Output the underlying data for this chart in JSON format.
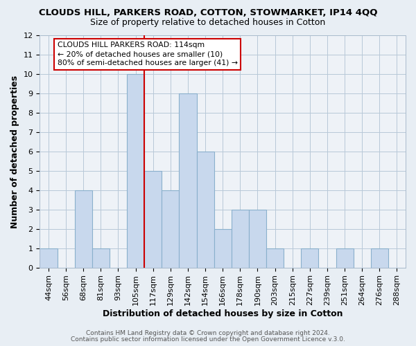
{
  "title": "CLOUDS HILL, PARKERS ROAD, COTTON, STOWMARKET, IP14 4QQ",
  "subtitle": "Size of property relative to detached houses in Cotton",
  "xlabel": "Distribution of detached houses by size in Cotton",
  "ylabel": "Number of detached properties",
  "bar_color": "#c8d8ed",
  "bar_edgecolor": "#8ab0cc",
  "bin_labels": [
    "44sqm",
    "56sqm",
    "68sqm",
    "81sqm",
    "93sqm",
    "105sqm",
    "117sqm",
    "129sqm",
    "142sqm",
    "154sqm",
    "166sqm",
    "178sqm",
    "190sqm",
    "203sqm",
    "215sqm",
    "227sqm",
    "239sqm",
    "251sqm",
    "264sqm",
    "276sqm",
    "288sqm"
  ],
  "counts": [
    1,
    0,
    4,
    1,
    0,
    10,
    5,
    4,
    9,
    6,
    2,
    3,
    3,
    1,
    0,
    1,
    0,
    1,
    0,
    1,
    0
  ],
  "red_line_bin_index": 6,
  "annotation_text": "CLOUDS HILL PARKERS ROAD: 114sqm\n← 20% of detached houses are smaller (10)\n80% of semi-detached houses are larger (41) →",
  "annotation_box_color": "#ffffff",
  "annotation_box_edgecolor": "#cc0000",
  "red_line_color": "#cc0000",
  "ylim": [
    0,
    12
  ],
  "yticks": [
    0,
    1,
    2,
    3,
    4,
    5,
    6,
    7,
    8,
    9,
    10,
    11,
    12
  ],
  "footer1": "Contains HM Land Registry data © Crown copyright and database right 2024.",
  "footer2": "Contains public sector information licensed under the Open Government Licence v.3.0.",
  "background_color": "#e8eef4",
  "plot_background": "#eef2f7",
  "grid_color": "#b8c8d8",
  "title_fontsize": 9.5,
  "subtitle_fontsize": 9,
  "axis_label_fontsize": 9,
  "tick_fontsize": 8,
  "footer_fontsize": 6.5
}
